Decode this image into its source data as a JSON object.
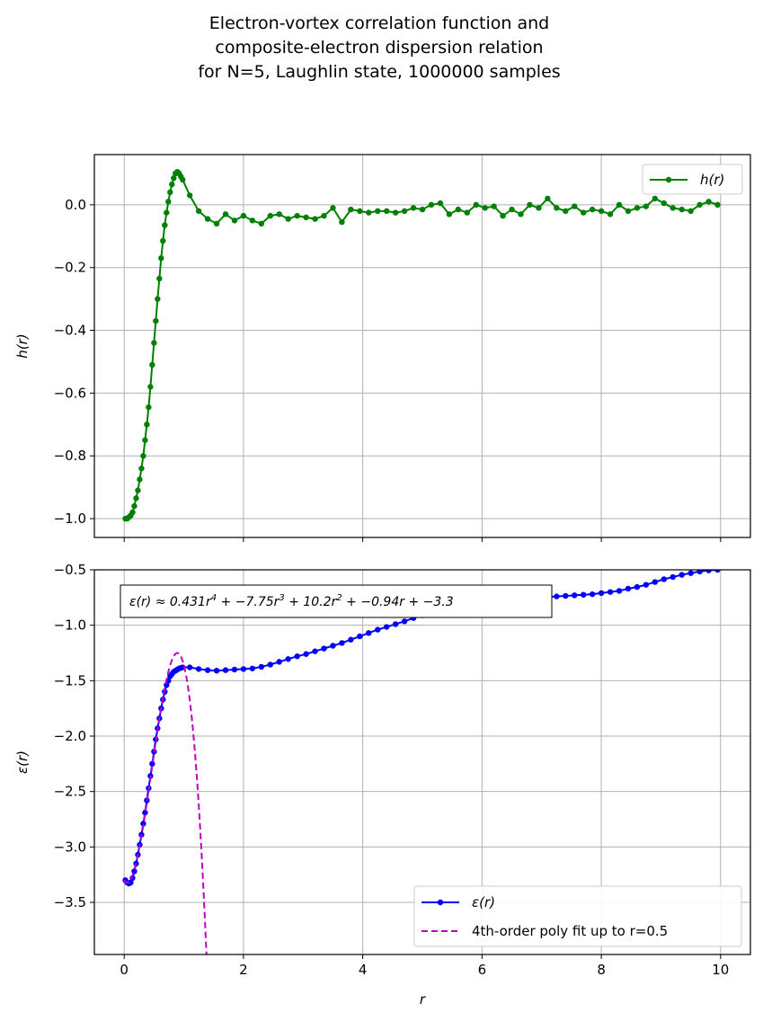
{
  "figure": {
    "title_lines": [
      "Electron-vortex correlation function and",
      "composite-electron dispersion relation",
      "for N=5, Laughlin state, 1000000 samples"
    ]
  },
  "chart_data": [
    {
      "type": "line",
      "ylabel": "h(r)",
      "xlabel": "",
      "xlim": [
        -0.5,
        10.5
      ],
      "ylim": [
        -1.06,
        0.16
      ],
      "xticks": [
        0,
        2,
        4,
        6,
        8,
        10
      ],
      "xtick_labels_visible": false,
      "yticks": [
        -1.0,
        -0.8,
        -0.6,
        -0.4,
        -0.2,
        0.0
      ],
      "ytick_labels": [
        "−1.0",
        "−0.8",
        "−0.6",
        "−0.4",
        "−0.2",
        "0.0"
      ],
      "grid": true,
      "legend": "upper right",
      "series": [
        {
          "name": "h(r)",
          "color": "#008000",
          "marker": "circle",
          "line": "solid",
          "x": [
            0.02,
            0.05,
            0.08,
            0.11,
            0.14,
            0.17,
            0.2,
            0.23,
            0.26,
            0.29,
            0.32,
            0.35,
            0.38,
            0.41,
            0.44,
            0.47,
            0.5,
            0.53,
            0.56,
            0.59,
            0.62,
            0.65,
            0.68,
            0.71,
            0.74,
            0.77,
            0.8,
            0.83,
            0.86,
            0.89,
            0.92,
            0.95,
            0.98,
            1.1,
            1.25,
            1.4,
            1.55,
            1.7,
            1.85,
            2.0,
            2.15,
            2.3,
            2.45,
            2.6,
            2.75,
            2.9,
            3.05,
            3.2,
            3.35,
            3.5,
            3.65,
            3.8,
            3.95,
            4.1,
            4.25,
            4.4,
            4.55,
            4.7,
            4.85,
            5.0,
            5.15,
            5.3,
            5.45,
            5.6,
            5.75,
            5.9,
            6.05,
            6.2,
            6.35,
            6.5,
            6.65,
            6.8,
            6.95,
            7.1,
            7.25,
            7.4,
            7.55,
            7.7,
            7.85,
            8.0,
            8.15,
            8.3,
            8.45,
            8.6,
            8.75,
            8.9,
            9.05,
            9.2,
            9.35,
            9.5,
            9.65,
            9.8,
            9.95
          ],
          "y": [
            -1.0,
            -1.0,
            -0.995,
            -0.99,
            -0.98,
            -0.96,
            -0.935,
            -0.91,
            -0.875,
            -0.84,
            -0.8,
            -0.75,
            -0.7,
            -0.645,
            -0.58,
            -0.51,
            -0.44,
            -0.37,
            -0.3,
            -0.235,
            -0.17,
            -0.115,
            -0.065,
            -0.025,
            0.01,
            0.04,
            0.065,
            0.085,
            0.1,
            0.105,
            0.1,
            0.09,
            0.08,
            0.03,
            -0.02,
            -0.045,
            -0.06,
            -0.03,
            -0.05,
            -0.035,
            -0.05,
            -0.06,
            -0.035,
            -0.03,
            -0.045,
            -0.035,
            -0.04,
            -0.045,
            -0.035,
            -0.01,
            -0.055,
            -0.015,
            -0.02,
            -0.025,
            -0.02,
            -0.02,
            -0.025,
            -0.02,
            -0.01,
            -0.015,
            0.0,
            0.005,
            -0.03,
            -0.015,
            -0.025,
            0.0,
            -0.01,
            -0.005,
            -0.035,
            -0.015,
            -0.03,
            0.0,
            -0.01,
            0.02,
            -0.01,
            -0.02,
            -0.005,
            -0.025,
            -0.015,
            -0.02,
            -0.03,
            0.0,
            -0.02,
            -0.01,
            -0.005,
            0.02,
            0.005,
            -0.01,
            -0.015,
            -0.02,
            0.0,
            0.01,
            0.0
          ]
        }
      ]
    },
    {
      "type": "line",
      "ylabel": "ε(r)",
      "xlabel": "r",
      "xlim": [
        -0.5,
        10.5
      ],
      "ylim": [
        -3.97,
        -0.5
      ],
      "xticks": [
        0,
        2,
        4,
        6,
        8,
        10
      ],
      "xtick_labels": [
        "0",
        "2",
        "4",
        "6",
        "8",
        "10"
      ],
      "yticks": [
        -3.5,
        -3.0,
        -2.5,
        -2.0,
        -1.5,
        -1.0,
        -0.5
      ],
      "ytick_labels": [
        "−3.5",
        "−3.0",
        "−2.5",
        "−2.0",
        "−1.5",
        "−1.0",
        "−0.5"
      ],
      "grid": true,
      "legend": "lower right",
      "annotation": {
        "text_parts": [
          {
            "t": "ε(r) ≈ 0.431r",
            "sup": "4"
          },
          {
            "t": " + −7.75r",
            "sup": "3"
          },
          {
            "t": " + 10.2r",
            "sup": "2"
          },
          {
            "t": " + −0.94r + −3.3",
            "sup": ""
          }
        ],
        "placement": "upper left"
      },
      "series": [
        {
          "name": "ε(r)",
          "color": "#0000ff",
          "marker": "circle",
          "line": "solid",
          "x": [
            0.02,
            0.05,
            0.08,
            0.11,
            0.14,
            0.17,
            0.2,
            0.23,
            0.26,
            0.29,
            0.32,
            0.35,
            0.38,
            0.41,
            0.44,
            0.47,
            0.5,
            0.53,
            0.56,
            0.59,
            0.62,
            0.65,
            0.68,
            0.71,
            0.74,
            0.77,
            0.8,
            0.83,
            0.86,
            0.89,
            0.92,
            0.95,
            0.98,
            1.1,
            1.25,
            1.4,
            1.55,
            1.7,
            1.85,
            2.0,
            2.15,
            2.3,
            2.45,
            2.6,
            2.75,
            2.9,
            3.05,
            3.2,
            3.35,
            3.5,
            3.65,
            3.8,
            3.95,
            4.1,
            4.25,
            4.4,
            4.55,
            4.7,
            4.85,
            5.0,
            5.15,
            5.3,
            5.45,
            5.6,
            5.75,
            5.9,
            6.05,
            6.2,
            6.35,
            6.5,
            6.65,
            6.8,
            6.95,
            7.1,
            7.25,
            7.4,
            7.55,
            7.7,
            7.85,
            8.0,
            8.15,
            8.3,
            8.45,
            8.6,
            8.75,
            8.9,
            9.05,
            9.2,
            9.35,
            9.5,
            9.65,
            9.8,
            9.95
          ],
          "y": [
            -3.3,
            -3.32,
            -3.33,
            -3.32,
            -3.28,
            -3.22,
            -3.15,
            -3.07,
            -2.98,
            -2.89,
            -2.79,
            -2.69,
            -2.58,
            -2.47,
            -2.36,
            -2.25,
            -2.14,
            -2.03,
            -1.93,
            -1.84,
            -1.75,
            -1.67,
            -1.6,
            -1.54,
            -1.5,
            -1.46,
            -1.44,
            -1.42,
            -1.41,
            -1.4,
            -1.39,
            -1.385,
            -1.38,
            -1.38,
            -1.395,
            -1.405,
            -1.41,
            -1.405,
            -1.4,
            -1.395,
            -1.39,
            -1.375,
            -1.355,
            -1.33,
            -1.305,
            -1.28,
            -1.26,
            -1.235,
            -1.21,
            -1.185,
            -1.16,
            -1.13,
            -1.1,
            -1.07,
            -1.04,
            -1.015,
            -0.99,
            -0.965,
            -0.935,
            -0.91,
            -0.89,
            -0.875,
            -0.86,
            -0.845,
            -0.835,
            -0.825,
            -0.81,
            -0.8,
            -0.79,
            -0.78,
            -0.77,
            -0.76,
            -0.75,
            -0.745,
            -0.74,
            -0.735,
            -0.73,
            -0.725,
            -0.72,
            -0.71,
            -0.7,
            -0.69,
            -0.67,
            -0.655,
            -0.635,
            -0.61,
            -0.585,
            -0.565,
            -0.545,
            -0.53,
            -0.515,
            -0.505,
            -0.5
          ]
        },
        {
          "name": "4th-order poly fit up to r=0.5",
          "color": "#bf00bf",
          "marker": "none",
          "line": "dashed",
          "poly_coefficients_high_to_low": [
            0.431,
            -7.75,
            10.2,
            -0.94,
            -3.3
          ],
          "x_range": [
            0.0,
            1.4
          ]
        }
      ]
    }
  ]
}
